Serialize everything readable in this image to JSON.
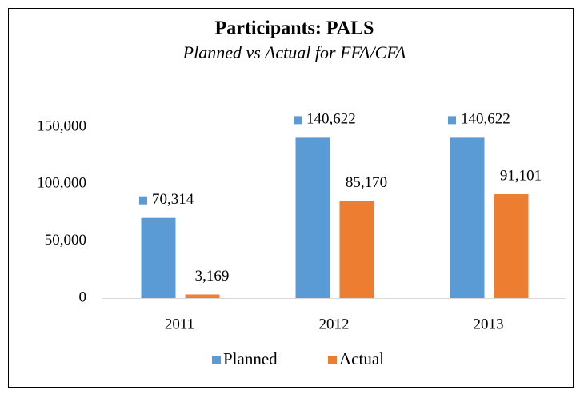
{
  "chart_data": {
    "type": "bar",
    "title": "Participants: PALS",
    "subtitle": "Planned vs Actual for FFA/CFA",
    "categories": [
      "2011",
      "2012",
      "2013"
    ],
    "series": [
      {
        "name": "Planned",
        "color": "#5b9bd5",
        "values": [
          70314,
          140622,
          140622
        ],
        "value_labels": [
          "70,314",
          "140,622",
          "140,622"
        ]
      },
      {
        "name": "Actual",
        "color": "#ed7d31",
        "values": [
          3169,
          85170,
          91101
        ],
        "value_labels": [
          "3,169",
          "85,170",
          "91,101"
        ]
      }
    ],
    "ylim": [
      0,
      150000
    ],
    "yticks": [
      0,
      {
        "value": 50000,
        "label": "50,000"
      },
      {
        "value": 100000,
        "label": "100,000"
      },
      {
        "value": 150000,
        "label": "150,000"
      }
    ],
    "grid": false,
    "legend": "bottom"
  }
}
